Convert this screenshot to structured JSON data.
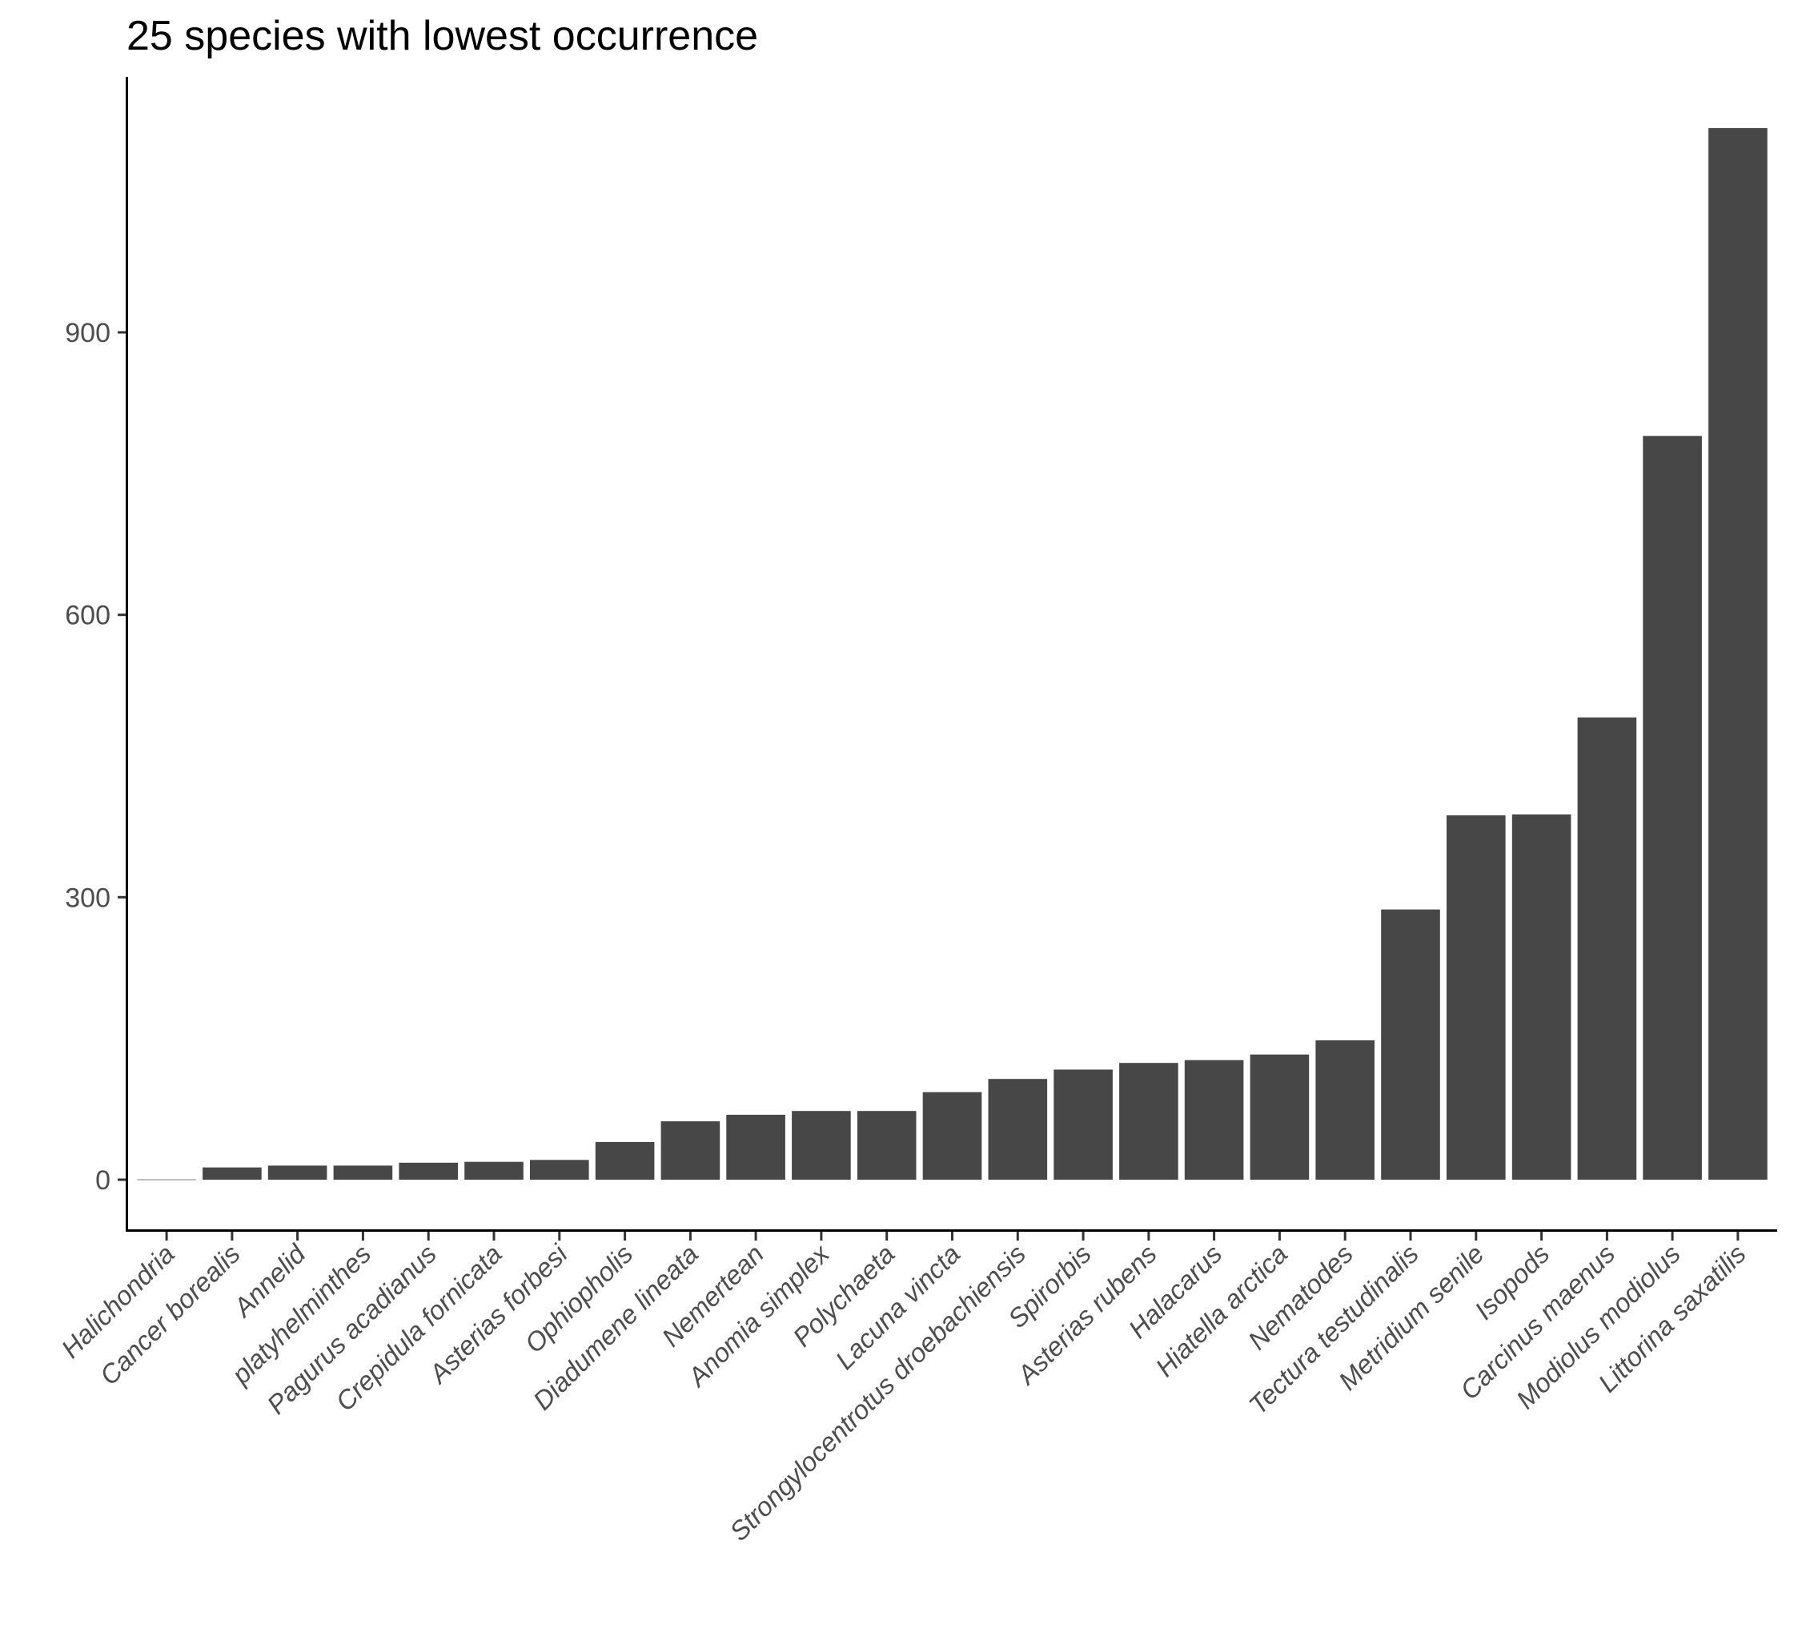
{
  "chart_data": {
    "type": "bar",
    "title": "25 species with lowest occurrence",
    "xlabel": "",
    "ylabel": "",
    "categories": [
      "Halichondria",
      "Cancer borealis",
      "Annelid",
      "platyhelminthes",
      "Pagurus acadianus",
      "Crepidula fornicata",
      "Asterias forbesi",
      "Ophiopholis",
      "Diadumene lineata",
      "Nemertean",
      "Anomia simplex",
      "Polychaeta",
      "Lacuna vincta",
      "Strongylocentrotus droebachiensis",
      "Spirorbis",
      "Asterias rubens",
      "Halacarus",
      "Hiatella arctica",
      "Nematodes",
      "Tectura testudinalis",
      "Metridium senile",
      "Isopods",
      "Carcinus maenus",
      "Modiolus modiolus",
      "Littorina saxatilis"
    ],
    "values": [
      1,
      13,
      15,
      15,
      18,
      19,
      21,
      40,
      62,
      69,
      73,
      73,
      93,
      107,
      117,
      124,
      127,
      133,
      148,
      287,
      387,
      388,
      491,
      790,
      1117
    ],
    "yticks": [
      0,
      300,
      600,
      900
    ],
    "ylim": [
      -20,
      1175
    ],
    "bar_color": "#474747",
    "min_bar_color": "#bfbfbf",
    "grid": false,
    "legend": "none"
  }
}
